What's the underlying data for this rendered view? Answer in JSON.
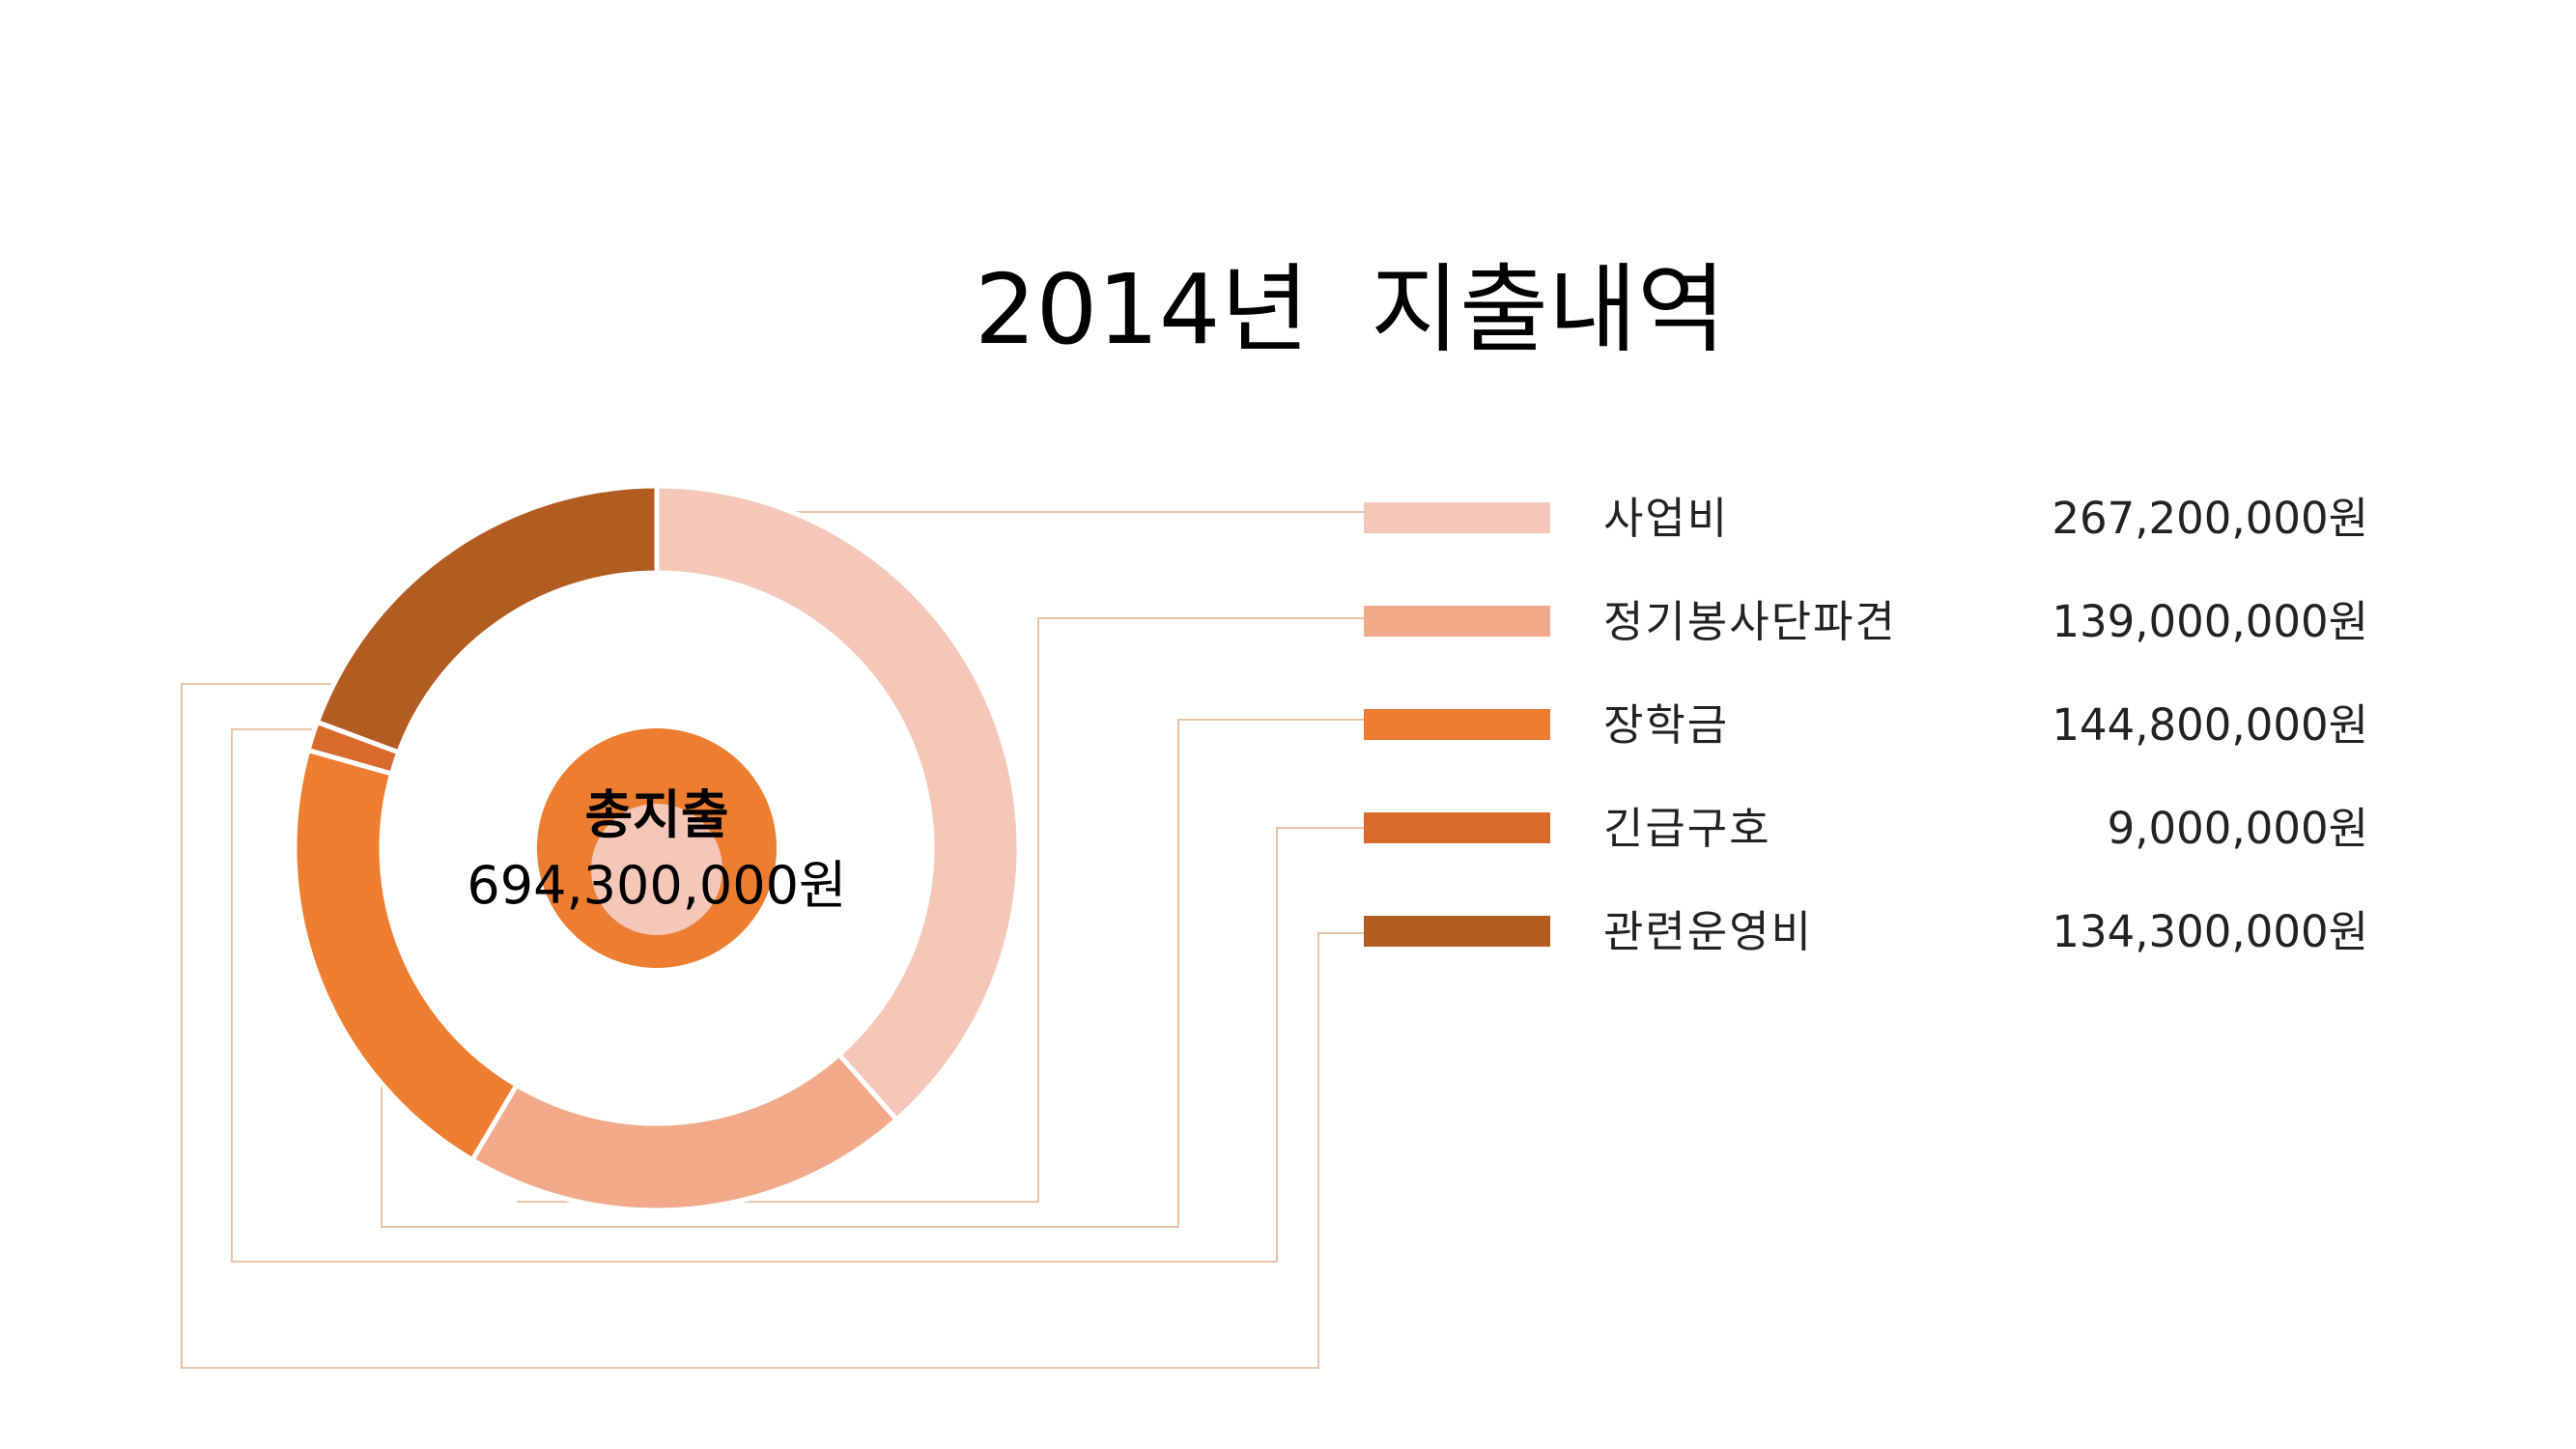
{
  "chart_data": {
    "type": "pie",
    "title": "2014년  지출내역",
    "center_title": "총지출",
    "center_value": "694,300,000원",
    "total": 694300000,
    "colors": [
      "#f4c7b8",
      "#f1a98a",
      "#ed7d31",
      "#d86b2c",
      "#b35c22"
    ],
    "center_disc_color": "#ed7d31",
    "center_inner_color": "#f4c7b8",
    "slices": [
      {
        "label": "사업비",
        "value": 267200000,
        "value_text": "267,200,000원"
      },
      {
        "label": "정기봉사단파견",
        "value": 139000000,
        "value_text": "139,000,000원"
      },
      {
        "label": "장학금",
        "value": 144800000,
        "value_text": "144,800,000원"
      },
      {
        "label": "긴급구호",
        "value": 9000000,
        "value_text": "9,000,000원"
      },
      {
        "label": "관련운영비",
        "value": 134300000,
        "value_text": "134,300,000원"
      }
    ]
  }
}
